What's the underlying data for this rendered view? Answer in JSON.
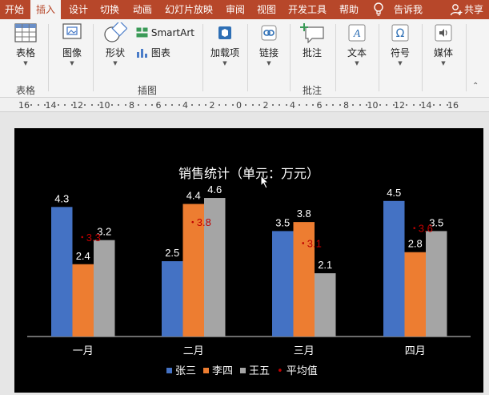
{
  "tabs": [
    "开始",
    "插入",
    "设计",
    "切换",
    "动画",
    "幻灯片放映",
    "审阅",
    "视图",
    "开发工具",
    "帮助"
  ],
  "active_tab": "插入",
  "tell_me": "告诉我",
  "share": "共享",
  "ribbon": {
    "table": "表格",
    "image": "图像",
    "shapes": "形状",
    "smartart": "SmartArt",
    "chart": "图表",
    "addins": "加载项",
    "link": "链接",
    "comment": "批注",
    "text": "文本",
    "symbols": "符号",
    "media": "媒体",
    "groups": {
      "table": "表格",
      "illustrations": "插图",
      "comments": "批注"
    }
  },
  "ruler_labels": [
    "16",
    "14",
    "12",
    "10",
    "8",
    "6",
    "4",
    "2",
    "0",
    "2",
    "4",
    "6",
    "8",
    "10",
    "12",
    "14",
    "16"
  ],
  "accent": "#b7472a",
  "chart_data": {
    "type": "bar",
    "title": "销售统计（单元：万元）",
    "categories": [
      "一月",
      "二月",
      "三月",
      "四月"
    ],
    "series": [
      {
        "name": "张三",
        "color": "#4472c4",
        "values": [
          4.3,
          2.5,
          3.5,
          4.5
        ]
      },
      {
        "name": "李四",
        "color": "#ed7d31",
        "values": [
          2.4,
          4.4,
          3.8,
          2.8
        ]
      },
      {
        "name": "王五",
        "color": "#a5a5a5",
        "values": [
          3.2,
          4.6,
          2.1,
          3.5
        ]
      }
    ],
    "average": {
      "name": "平均值",
      "color": "#c00000",
      "values": [
        3.3,
        3.8,
        3.1,
        3.6
      ]
    },
    "ylim": [
      0,
      5
    ],
    "legend": "bottom",
    "grid": false
  }
}
